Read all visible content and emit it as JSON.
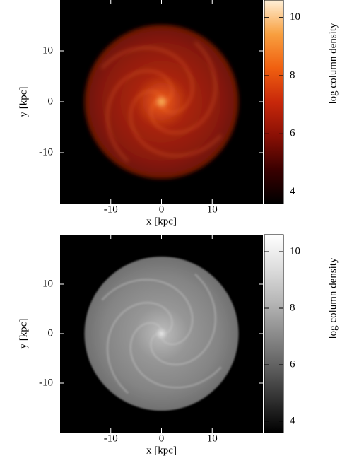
{
  "chart_data": [
    {
      "type": "image",
      "xlabel": "x [kpc]",
      "ylabel": "y [kpc]",
      "colorbar_label": "log column density",
      "xlim": [
        -20,
        20
      ],
      "ylim": [
        -20,
        20
      ],
      "xticks": [
        -10,
        0,
        10
      ],
      "yticks": [
        -10,
        0,
        10
      ],
      "clim": [
        3.6,
        10.6
      ],
      "cticks": [
        4,
        6,
        8,
        10
      ],
      "colormap": "hot"
    },
    {
      "type": "image",
      "xlabel": "x [kpc]",
      "ylabel": "y [kpc]",
      "colorbar_label": "log column density",
      "xlim": [
        -20,
        20
      ],
      "ylim": [
        -20,
        20
      ],
      "xticks": [
        -10,
        0,
        10
      ],
      "yticks": [
        -10,
        0,
        10
      ],
      "clim": [
        3.6,
        10.6
      ],
      "cticks": [
        4,
        6,
        8,
        10
      ],
      "colormap": "gray"
    }
  ]
}
